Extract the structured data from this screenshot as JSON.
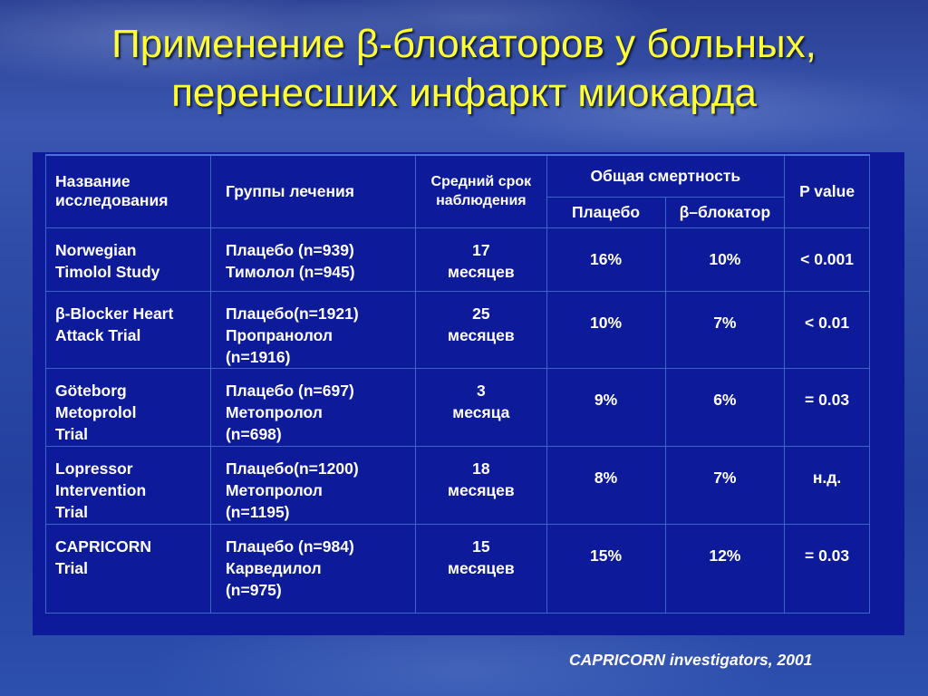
{
  "title": {
    "line1": "Применение β-блокаторов у больных,",
    "line2": "перенесших инфаркт миокарда"
  },
  "table": {
    "headers": {
      "study": "Название исследования",
      "groups": "Группы лечения",
      "followup": "Средний срок наблюдения",
      "mortality": "Общая смертность",
      "placebo": "Плацебо",
      "blocker": "β–блокатор",
      "pvalue": "P value"
    },
    "rows": [
      {
        "study": [
          "Norwegian",
          "Timolol Study"
        ],
        "groups": [
          "Плацебо (n=939)",
          "Тимолол (n=945)"
        ],
        "followup": [
          "17",
          "месяцев"
        ],
        "placebo": "16%",
        "blocker": "10%",
        "pvalue": "< 0.001"
      },
      {
        "study": [
          "β-Blocker Heart",
          "Attack Trial"
        ],
        "groups": [
          "Плацебо(n=1921)",
          "Пропранолол",
          "(n=1916)"
        ],
        "followup": [
          "25",
          "месяцев"
        ],
        "placebo": "10%",
        "blocker": "7%",
        "pvalue": "< 0.01"
      },
      {
        "study": [
          "Göteborg",
          "Metoprolol",
          "Trial"
        ],
        "groups": [
          "Плацебо (n=697)",
          "Метопролол",
          "(n=698)"
        ],
        "followup": [
          "3",
          "месяца"
        ],
        "placebo": "9%",
        "blocker": "6%",
        "pvalue": "= 0.03"
      },
      {
        "study": [
          "Lopressor",
          "Intervention",
          "Trial"
        ],
        "groups": [
          "Плацебо(n=1200)",
          "Метопролол",
          "(n=1195)"
        ],
        "followup": [
          "18",
          "месяцев"
        ],
        "placebo": "8%",
        "blocker": "7%",
        "pvalue": "н.д."
      },
      {
        "study": [
          "CAPRICORN",
          "Trial"
        ],
        "groups": [
          "Плацебо (n=984)",
          "Карведилол",
          "(n=975)"
        ],
        "followup": [
          "15",
          "месяцев"
        ],
        "placebo": "15%",
        "blocker": "12%",
        "pvalue": "= 0.03"
      }
    ]
  },
  "footer": "CAPRICORN investigators, 2001"
}
